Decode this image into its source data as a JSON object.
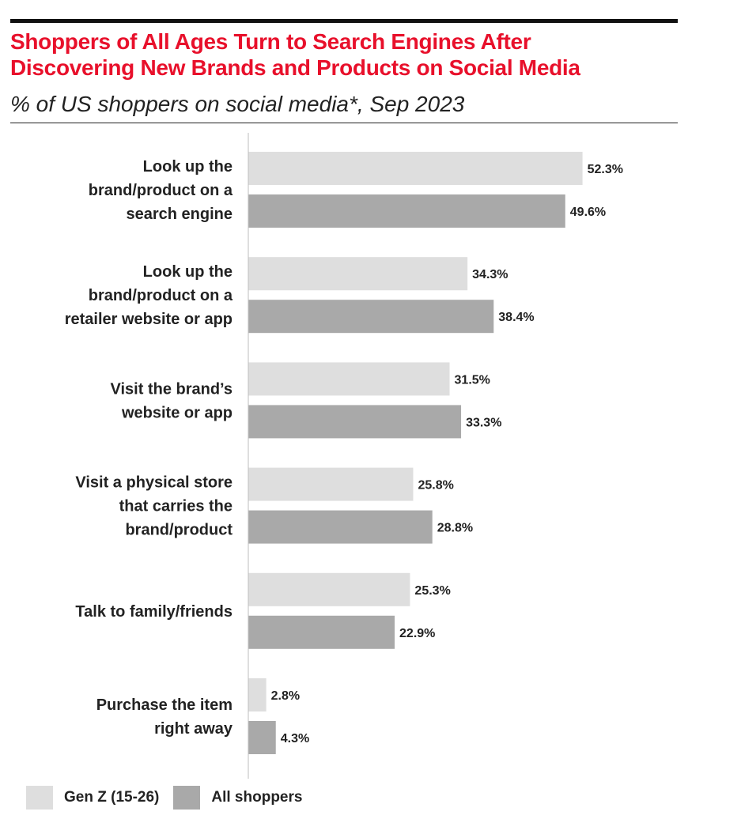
{
  "title_lines": [
    "Shoppers of All Ages Turn to Search Engines After",
    "Discovering New Brands and Products on Social Media"
  ],
  "subtitle": "% of US shoppers on social media*, Sep 2023",
  "colors": {
    "gen_z": "#dedede",
    "all_shoppers": "#a9a9a9",
    "title": "#e8102b"
  },
  "legend": [
    {
      "label": "Gen Z (15-26)",
      "color": "#dedede"
    },
    {
      "label": "All shoppers",
      "color": "#a9a9a9"
    }
  ],
  "chart_data": {
    "type": "bar",
    "orientation": "horizontal",
    "title": "Shoppers of All Ages Turn to Search Engines After Discovering New Brands and Products on Social Media",
    "subtitle": "% of US shoppers on social media*, Sep 2023",
    "categories": [
      [
        "Look up the",
        "brand/product on a",
        "search engine"
      ],
      [
        "Look up the",
        "brand/product on a",
        "retailer website or app"
      ],
      [
        "Visit the brand’s",
        "website or app"
      ],
      [
        "Visit a physical store",
        "that carries the",
        "brand/product"
      ],
      [
        "Talk to family/friends"
      ],
      [
        "Purchase the item",
        "right away"
      ]
    ],
    "series": [
      {
        "name": "Gen Z (15-26)",
        "values": [
          52.3,
          34.3,
          31.5,
          25.8,
          25.3,
          2.8
        ],
        "labels": [
          "52.3%",
          "34.3%",
          "31.5%",
          "25.8%",
          "25.3%",
          "2.8%"
        ]
      },
      {
        "name": "All shoppers",
        "values": [
          49.6,
          38.4,
          33.3,
          28.8,
          22.9,
          4.3
        ],
        "labels": [
          "49.6%",
          "38.4%",
          "33.3%",
          "28.8%",
          "22.9%",
          "4.3%"
        ]
      }
    ],
    "xlim": [
      0,
      60
    ],
    "grid": false,
    "legend_position": "bottom-left"
  }
}
